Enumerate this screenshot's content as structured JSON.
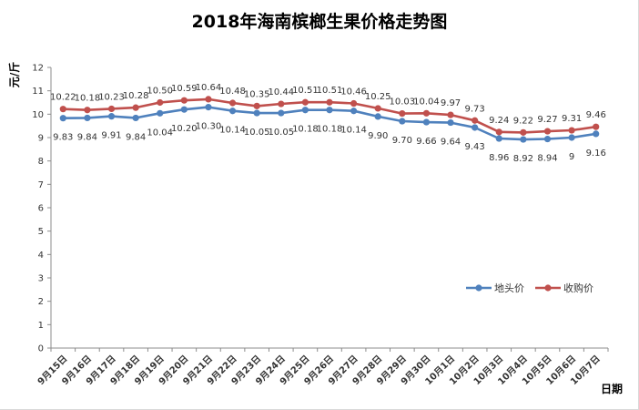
{
  "chart_data": {
    "type": "line",
    "title": "2018年海南槟榔生果价格走势图",
    "xlabel": "日期",
    "ylabel": "元/斤",
    "ylim": [
      0,
      12
    ],
    "yticks": [
      0,
      1,
      2,
      3,
      4,
      5,
      6,
      7,
      8,
      9,
      10,
      11,
      12
    ],
    "grid": false,
    "legend_position": "right",
    "categories": [
      "9月15日",
      "9月16日",
      "9月17日",
      "9月18日",
      "9月19日",
      "9月20日",
      "9月21日",
      "9月22日",
      "9月23日",
      "9月24日",
      "9月25日",
      "9月26日",
      "9月27日",
      "9月28日",
      "9月29日",
      "9月30日",
      "10月1日",
      "10月2日",
      "10月3日",
      "10月4日",
      "10月5日",
      "10月6日",
      "10月7日"
    ],
    "series": [
      {
        "name": "地头价",
        "color": "#4f81bd",
        "values": [
          9.83,
          9.84,
          9.91,
          9.84,
          10.04,
          10.2,
          10.3,
          10.14,
          10.05,
          10.05,
          10.18,
          10.18,
          10.14,
          9.9,
          9.7,
          9.66,
          9.64,
          9.43,
          8.96,
          8.92,
          8.94,
          9,
          9.16
        ],
        "labels": [
          "9.83",
          "9.84",
          "9.91",
          "9.84",
          "10.04",
          "10.20",
          "10.30",
          "10.14",
          "10.05",
          "10.05",
          "10.18",
          "10.18",
          "10.14",
          "9.90",
          "9.70",
          "9.66",
          "9.64",
          "9.43",
          "8.96",
          "8.92",
          "8.94",
          "9",
          "9.16"
        ]
      },
      {
        "name": "收购价",
        "color": "#c0504d",
        "values": [
          10.22,
          10.18,
          10.23,
          10.28,
          10.5,
          10.59,
          10.64,
          10.48,
          10.35,
          10.44,
          10.51,
          10.51,
          10.46,
          10.25,
          10.03,
          10.04,
          9.97,
          9.73,
          9.24,
          9.22,
          9.27,
          9.31,
          9.46
        ],
        "labels": [
          "10.22",
          "10.18",
          "10.23",
          "10.28",
          "10.50",
          "10.59",
          "10.64",
          "10.48",
          "10.35",
          "10.44",
          "10.51",
          "10.51",
          "10.46",
          "10.25",
          "10.03",
          "10.04",
          "9.97",
          "9.73",
          "9.24",
          "9.22",
          "9.27",
          "9.31",
          "9.46"
        ]
      }
    ]
  }
}
